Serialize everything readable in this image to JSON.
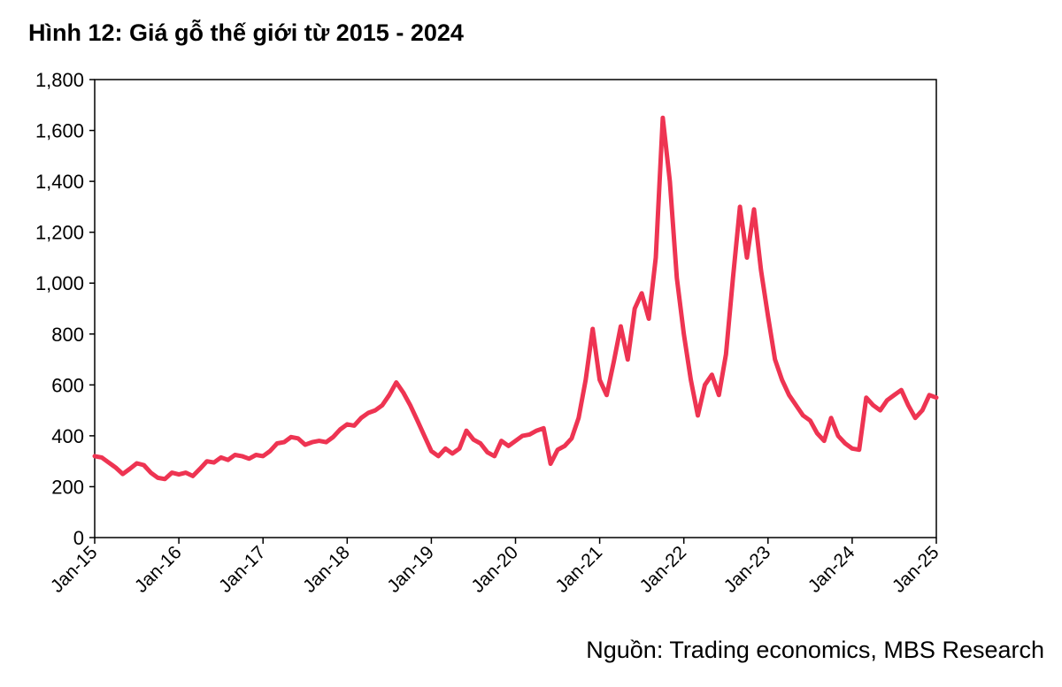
{
  "title": "Hình 12: Giá gỗ thế giới từ 2015 - 2024",
  "source": "Nguồn: Trading economics, MBS Research",
  "colors": {
    "series": "#ee3452",
    "axis": "#000000"
  },
  "chart_data": {
    "type": "line",
    "title": "Hình 12: Giá gỗ thế giới từ 2015 - 2024",
    "xlabel": "",
    "ylabel": "",
    "ylim": [
      0,
      1800
    ],
    "xlim": [
      "2015-01",
      "2025-01"
    ],
    "yticks": [
      0,
      200,
      400,
      600,
      800,
      1000,
      1200,
      1400,
      1600,
      1800
    ],
    "ytick_labels": [
      "0",
      "200",
      "400",
      "600",
      "800",
      "1,000",
      "1,200",
      "1,400",
      "1,600",
      "1,800"
    ],
    "xtick_labels": [
      "Jan-15",
      "Jan-16",
      "Jan-17",
      "Jan-18",
      "Jan-19",
      "Jan-20",
      "Jan-21",
      "Jan-22",
      "Jan-23",
      "Jan-24",
      "Jan-25"
    ],
    "grid": false,
    "legend": "none",
    "series": [
      {
        "color": "#ee3452",
        "points": [
          [
            "2015-01",
            320
          ],
          [
            "2015-02",
            315
          ],
          [
            "2015-03",
            295
          ],
          [
            "2015-04",
            275
          ],
          [
            "2015-05",
            250
          ],
          [
            "2015-06",
            270
          ],
          [
            "2015-07",
            292
          ],
          [
            "2015-08",
            285
          ],
          [
            "2015-09",
            255
          ],
          [
            "2015-10",
            235
          ],
          [
            "2015-11",
            230
          ],
          [
            "2015-12",
            255
          ],
          [
            "2016-01",
            248
          ],
          [
            "2016-02",
            255
          ],
          [
            "2016-03",
            242
          ],
          [
            "2016-04",
            270
          ],
          [
            "2016-05",
            300
          ],
          [
            "2016-06",
            295
          ],
          [
            "2016-07",
            315
          ],
          [
            "2016-08",
            305
          ],
          [
            "2016-09",
            325
          ],
          [
            "2016-10",
            320
          ],
          [
            "2016-11",
            310
          ],
          [
            "2016-12",
            325
          ],
          [
            "2017-01",
            320
          ],
          [
            "2017-02",
            340
          ],
          [
            "2017-03",
            370
          ],
          [
            "2017-04",
            375
          ],
          [
            "2017-05",
            395
          ],
          [
            "2017-06",
            390
          ],
          [
            "2017-07",
            365
          ],
          [
            "2017-08",
            375
          ],
          [
            "2017-09",
            380
          ],
          [
            "2017-10",
            375
          ],
          [
            "2017-11",
            395
          ],
          [
            "2017-12",
            425
          ],
          [
            "2018-01",
            445
          ],
          [
            "2018-02",
            440
          ],
          [
            "2018-03",
            470
          ],
          [
            "2018-04",
            490
          ],
          [
            "2018-05",
            500
          ],
          [
            "2018-06",
            520
          ],
          [
            "2018-07",
            560
          ],
          [
            "2018-08",
            610
          ],
          [
            "2018-09",
            570
          ],
          [
            "2018-10",
            520
          ],
          [
            "2018-11",
            460
          ],
          [
            "2018-12",
            400
          ],
          [
            "2019-01",
            340
          ],
          [
            "2019-02",
            320
          ],
          [
            "2019-03",
            350
          ],
          [
            "2019-04",
            330
          ],
          [
            "2019-05",
            350
          ],
          [
            "2019-06",
            420
          ],
          [
            "2019-07",
            385
          ],
          [
            "2019-08",
            370
          ],
          [
            "2019-09",
            335
          ],
          [
            "2019-10",
            320
          ],
          [
            "2019-11",
            380
          ],
          [
            "2019-12",
            360
          ],
          [
            "2020-01",
            380
          ],
          [
            "2020-02",
            400
          ],
          [
            "2020-03",
            405
          ],
          [
            "2020-04",
            420
          ],
          [
            "2020-05",
            430
          ],
          [
            "2020-06",
            290
          ],
          [
            "2020-07",
            345
          ],
          [
            "2020-08",
            360
          ],
          [
            "2020-09",
            390
          ],
          [
            "2020-10",
            470
          ],
          [
            "2020-11",
            620
          ],
          [
            "2020-12",
            820
          ],
          [
            "2021-01",
            620
          ],
          [
            "2021-02",
            560
          ],
          [
            "2021-03",
            690
          ],
          [
            "2021-04",
            830
          ],
          [
            "2021-05",
            700
          ],
          [
            "2021-06",
            900
          ],
          [
            "2021-07",
            960
          ],
          [
            "2021-08",
            860
          ],
          [
            "2021-09",
            1100
          ],
          [
            "2021-10",
            1650
          ],
          [
            "2021-11",
            1400
          ],
          [
            "2021-12",
            1020
          ],
          [
            "2022-01",
            800
          ],
          [
            "2022-02",
            620
          ],
          [
            "2022-03",
            480
          ],
          [
            "2022-04",
            600
          ],
          [
            "2022-05",
            640
          ],
          [
            "2022-06",
            560
          ],
          [
            "2022-07",
            720
          ],
          [
            "2022-08",
            1020
          ],
          [
            "2022-09",
            1300
          ],
          [
            "2022-10",
            1100
          ],
          [
            "2022-11",
            1290
          ],
          [
            "2022-12",
            1050
          ],
          [
            "2023-01",
            870
          ],
          [
            "2023-02",
            700
          ],
          [
            "2023-03",
            620
          ],
          [
            "2023-04",
            560
          ],
          [
            "2023-05",
            520
          ],
          [
            "2023-06",
            480
          ],
          [
            "2023-07",
            460
          ],
          [
            "2023-08",
            410
          ],
          [
            "2023-09",
            380
          ],
          [
            "2023-10",
            470
          ],
          [
            "2023-11",
            400
          ],
          [
            "2023-12",
            370
          ],
          [
            "2024-01",
            350
          ],
          [
            "2024-02",
            345
          ],
          [
            "2024-03",
            550
          ],
          [
            "2024-04",
            520
          ],
          [
            "2024-05",
            500
          ],
          [
            "2024-06",
            540
          ],
          [
            "2024-07",
            560
          ],
          [
            "2024-08",
            580
          ],
          [
            "2024-09",
            520
          ],
          [
            "2024-10",
            470
          ],
          [
            "2024-11",
            500
          ],
          [
            "2024-12",
            560
          ],
          [
            "2025-01",
            550
          ]
        ]
      }
    ]
  }
}
